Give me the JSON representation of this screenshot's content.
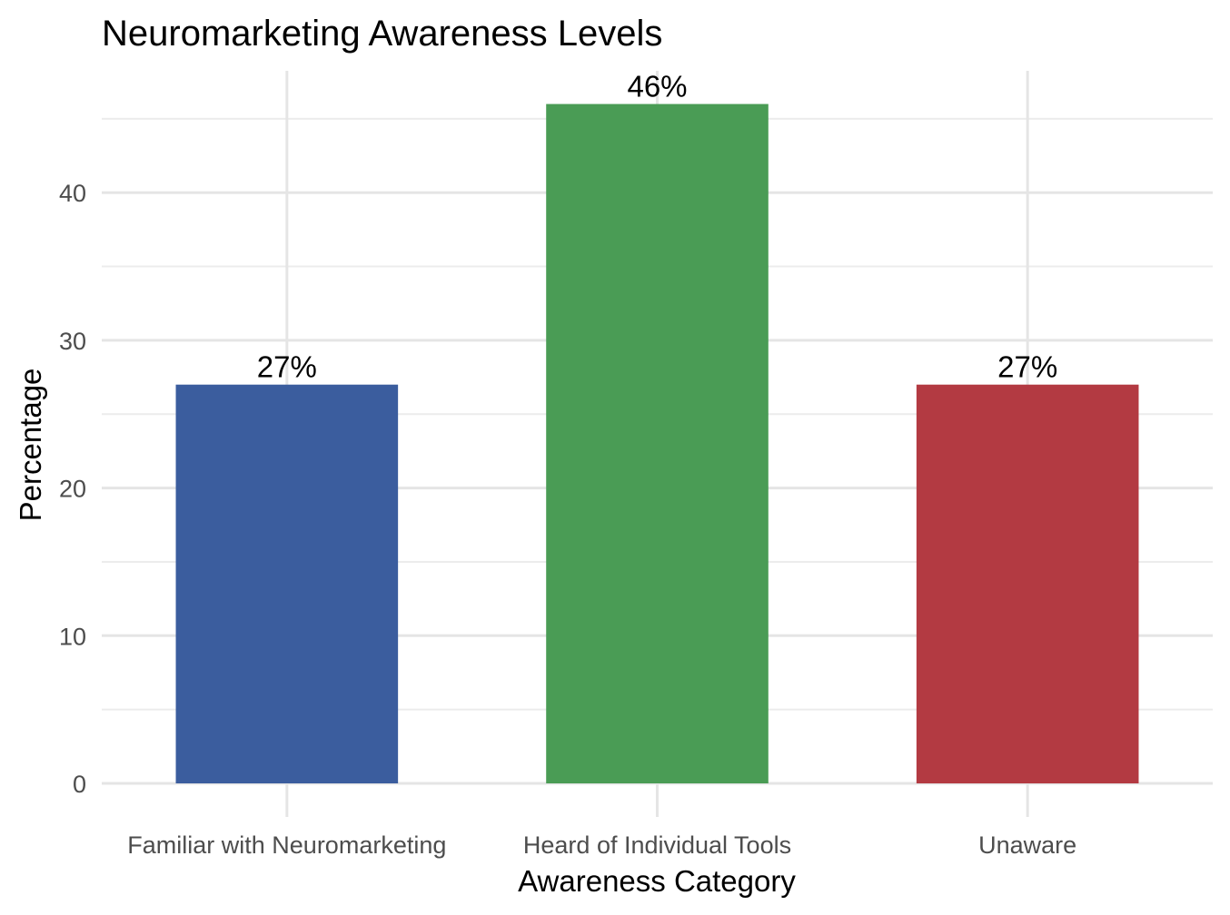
{
  "chart_data": {
    "type": "bar",
    "title": "Neuromarketing Awareness Levels",
    "xlabel": "Awareness Category",
    "ylabel": "Percentage",
    "categories": [
      "Familiar with Neuromarketing",
      "Heard of Individual Tools",
      "Unaware"
    ],
    "values": [
      27,
      46,
      27
    ],
    "data_labels": [
      "27%",
      "46%",
      "27%"
    ],
    "colors": [
      "#3b5d9e",
      "#4a9c55",
      "#b33a42"
    ],
    "ylim": [
      0,
      48.3
    ],
    "yticks": [
      0,
      10,
      20,
      30,
      40
    ],
    "grid": true,
    "legend": "none"
  }
}
